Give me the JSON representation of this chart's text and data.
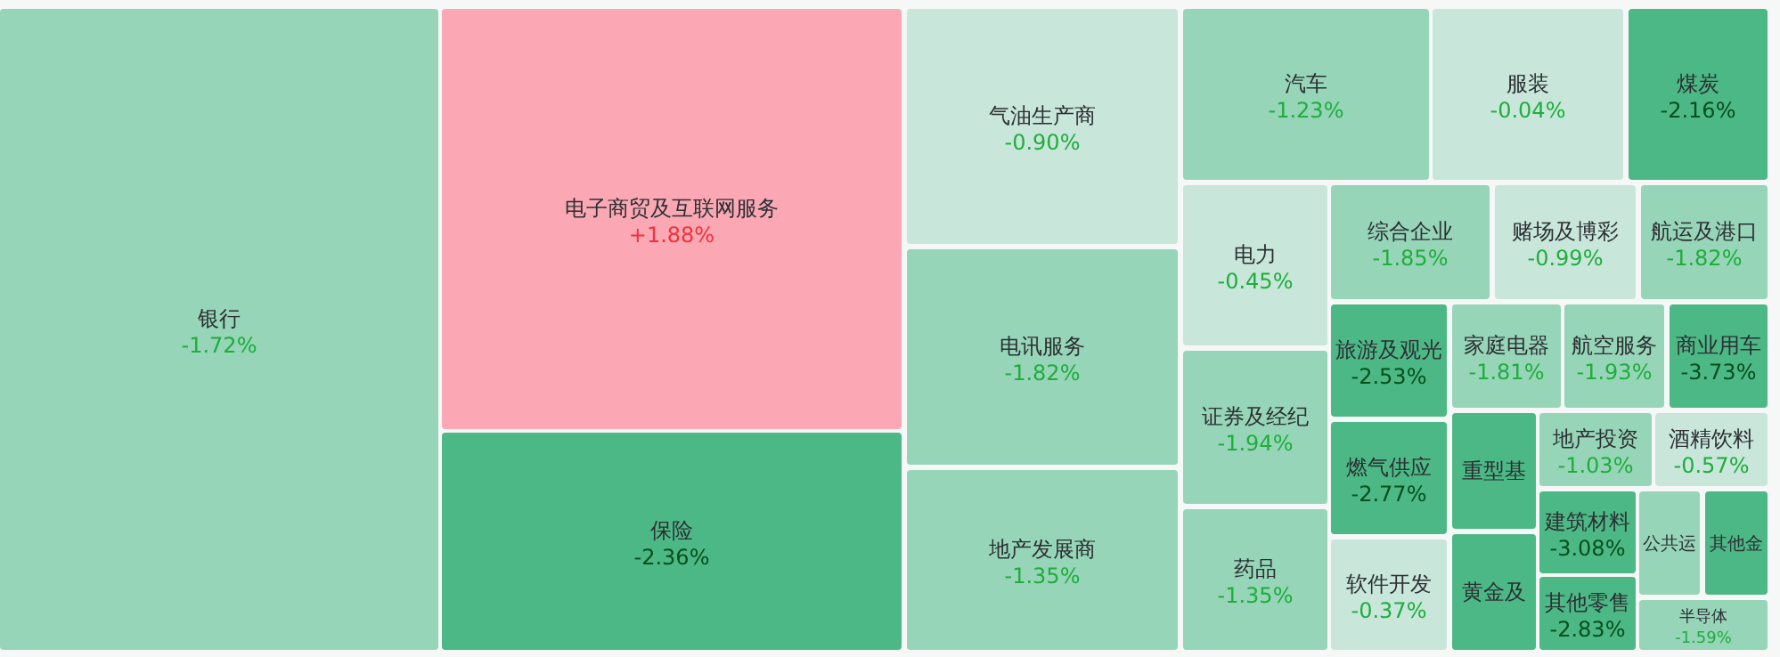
{
  "chart_data": {
    "type": "other",
    "categories": [
      "银行",
      "电子商贸及互联网服务",
      "保险",
      "气油生产商",
      "电讯服务",
      "地产发展商",
      "汽车",
      "服装",
      "煤炭",
      "电力",
      "证券及经纪",
      "药品",
      "综合企业",
      "赌场及博彩",
      "航运及港口",
      "旅游及观光",
      "家庭电器",
      "航空服务",
      "商业用车",
      "燃气供应",
      "软件开发",
      "重型基",
      "黄金及",
      "地产投资",
      "酒精饮料",
      "建筑材料",
      "其他零售",
      "公共运",
      "其他金",
      "半导体"
    ],
    "values": [
      -1.72,
      1.88,
      -2.36,
      -0.9,
      -1.82,
      -1.35,
      -1.23,
      -0.04,
      -2.16,
      -0.45,
      -1.94,
      -1.35,
      -1.85,
      -0.99,
      -1.82,
      -2.53,
      -1.81,
      -1.93,
      -3.73,
      -2.77,
      -0.37,
      null,
      null,
      -1.03,
      -0.57,
      -3.08,
      -2.83,
      null,
      null,
      -1.59
    ],
    "value_labels": [
      "-1.72%",
      "+1.88%",
      "-2.36%",
      "-0.90%",
      "-1.82%",
      "-1.35%",
      "-1.23%",
      "-0.04%",
      "-2.16%",
      "-0.45%",
      "-1.94%",
      "-1.35%",
      "-1.85%",
      "-0.99%",
      "-1.82%",
      "-2.53%",
      "-1.81%",
      "-1.93%",
      "-3.73%",
      "-2.77%",
      "-0.37%",
      null,
      null,
      "-1.03%",
      "-0.57%",
      "-3.08%",
      "-2.83%",
      null,
      null,
      "-1.59%"
    ],
    "colors": [
      "#96d5b8",
      "#fba8b4",
      "#4cb886",
      "#c8e6da",
      "#96d5b8",
      "#96d5b8",
      "#96d5b8",
      "#c8e6da",
      "#4cb886",
      "#c8e6da",
      "#96d5b8",
      "#96d5b8",
      "#96d5b8",
      "#c8e6da",
      "#96d5b8",
      "#4cb886",
      "#96d5b8",
      "#96d5b8",
      "#4cb886",
      "#4cb886",
      "#c8e6da",
      "#4cb886",
      "#4cb886",
      "#96d5b8",
      "#c8e6da",
      "#4cb886",
      "#4cb886",
      "#96d5b8",
      "#4cb886",
      "#96d5b8"
    ]
  }
}
